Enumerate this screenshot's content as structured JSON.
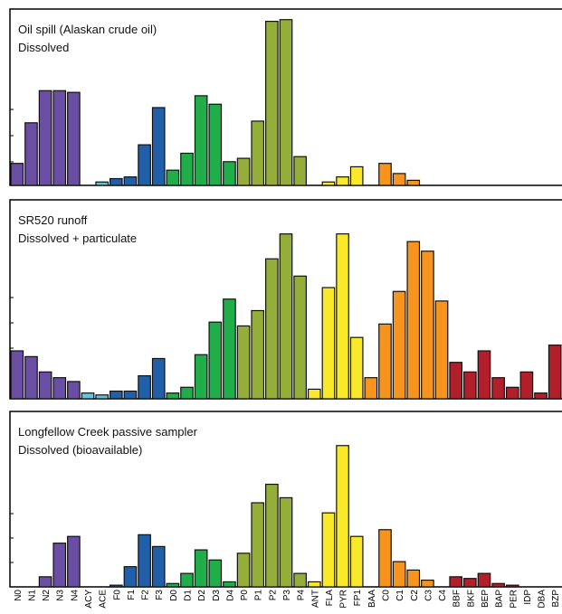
{
  "chart_data": {
    "type": "bar",
    "categories": [
      "N0",
      "N1",
      "N2",
      "N3",
      "N4",
      "ACY",
      "ACE",
      "F0",
      "F1",
      "F2",
      "F3",
      "D0",
      "D1",
      "D2",
      "D3",
      "D4",
      "P0",
      "P1",
      "P2",
      "P3",
      "P4",
      "ANT",
      "FLA",
      "PYR",
      "FP1",
      "BAA",
      "C0",
      "C1",
      "C2",
      "C3",
      "C4",
      "BBF",
      "BKF",
      "BEP",
      "BAP",
      "PER",
      "IDP",
      "DBA",
      "BZP"
    ],
    "ylim": [
      0,
      100
    ],
    "colors": [
      "#6a4ea3",
      "#6a4ea3",
      "#6a4ea3",
      "#6a4ea3",
      "#6a4ea3",
      "#63c3dd",
      "#63c3dd",
      "#2160a8",
      "#2160a8",
      "#2160a8",
      "#2160a8",
      "#1fae49",
      "#1fae49",
      "#1fae49",
      "#1fae49",
      "#1fae49",
      "#95ae3a",
      "#95ae3a",
      "#95ae3a",
      "#95ae3a",
      "#95ae3a",
      "#fae929",
      "#fae929",
      "#fae929",
      "#fae929",
      "#f7941d",
      "#f7941d",
      "#f7941d",
      "#f7941d",
      "#f7941d",
      "#f7941d",
      "#b11f2a",
      "#b11f2a",
      "#b11f2a",
      "#b11f2a",
      "#b11f2a",
      "#b11f2a",
      "#b11f2a",
      "#b11f2a"
    ],
    "panels": [
      {
        "title": "Oil spill (Alaskan crude oil)",
        "subtitle": "Dissolved",
        "values": [
          13,
          37,
          56,
          56,
          55,
          0,
          2,
          4,
          5,
          24,
          46,
          9,
          19,
          53,
          48,
          14,
          16,
          38,
          97,
          98,
          17,
          0,
          2,
          5,
          11,
          0,
          13,
          7,
          3,
          0,
          0,
          0,
          0,
          0,
          0,
          0,
          0,
          0,
          0
        ]
      },
      {
        "title": "SR520 runoff",
        "subtitle": "Dissolved + particulate",
        "values": [
          25,
          22,
          14,
          11,
          9,
          3,
          2,
          4,
          4,
          12,
          21,
          3,
          6,
          23,
          40,
          52,
          38,
          46,
          73,
          86,
          64,
          5,
          58,
          86,
          32,
          11,
          39,
          56,
          82,
          77,
          51,
          19,
          14,
          25,
          11,
          6,
          14,
          3,
          28
        ]
      },
      {
        "title": "Longfellow Creek passive sampler",
        "subtitle": "Dissolved (bioavailable)",
        "values": [
          0,
          0,
          6,
          26,
          30,
          0,
          0,
          1,
          12,
          31,
          24,
          2,
          8,
          22,
          16,
          3,
          20,
          50,
          61,
          53,
          8,
          3,
          44,
          84,
          30,
          0,
          34,
          15,
          10,
          4,
          0,
          6,
          5,
          8,
          2,
          1,
          0,
          0,
          0
        ]
      }
    ]
  }
}
